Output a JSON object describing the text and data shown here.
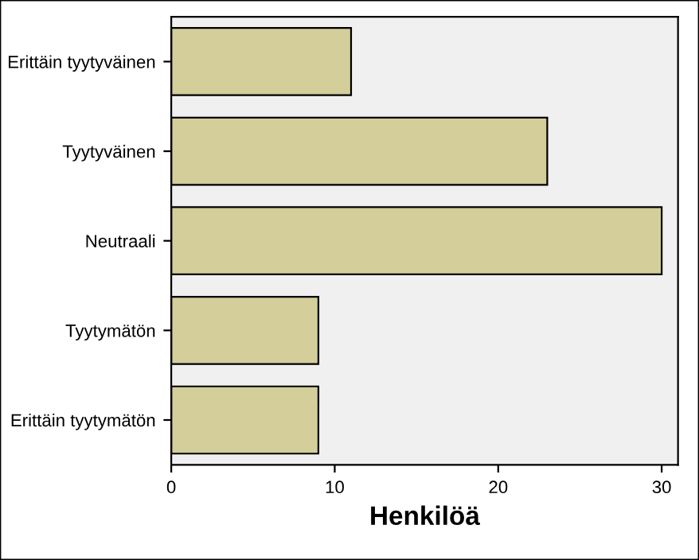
{
  "chart_data": {
    "type": "bar",
    "orientation": "horizontal",
    "xlabel": "Henkilöä",
    "categories": [
      "Erittäin tyytyväinen",
      "Tyytyväinen",
      "Neutraali",
      "Tyytymätön",
      "Erittäin tyytymätön"
    ],
    "values": [
      11,
      23,
      30,
      9,
      9
    ],
    "color": "#d3ce9a",
    "xlim": [
      0,
      31
    ],
    "xticks": [
      0,
      10,
      20,
      30
    ],
    "grid": false,
    "legend": false
  }
}
